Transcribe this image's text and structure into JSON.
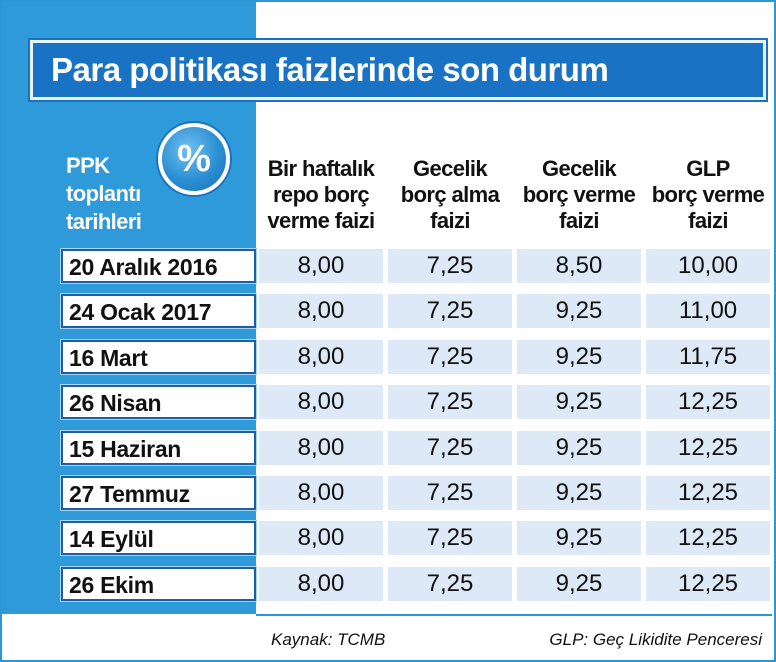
{
  "title": "Para politikası faizlerinde son durum",
  "badge": "%",
  "row_header_label": [
    "PPK",
    "toplantı",
    "tarihleri"
  ],
  "chart_data": {
    "type": "table",
    "title": "Para politikası faizlerinde son durum",
    "columns": [
      [
        "Bir haftalık",
        "repo borç",
        "verme faizi"
      ],
      [
        "Gecelik",
        "borç alma",
        "faizi"
      ],
      [
        "Gecelik",
        "borç verme",
        "faizi"
      ],
      [
        "GLP",
        "borç verme",
        "faizi"
      ]
    ],
    "rows": [
      {
        "date": "20 Aralık 2016",
        "values": [
          "8,00",
          "7,25",
          "8,50",
          "10,00"
        ]
      },
      {
        "date": "24 Ocak 2017",
        "values": [
          "8,00",
          "7,25",
          "9,25",
          "11,00"
        ]
      },
      {
        "date": "16 Mart",
        "values": [
          "8,00",
          "7,25",
          "9,25",
          "11,75"
        ]
      },
      {
        "date": "26 Nisan",
        "values": [
          "8,00",
          "7,25",
          "9,25",
          "12,25"
        ]
      },
      {
        "date": "15 Haziran",
        "values": [
          "8,00",
          "7,25",
          "9,25",
          "12,25"
        ]
      },
      {
        "date": "27 Temmuz",
        "values": [
          "8,00",
          "7,25",
          "9,25",
          "12,25"
        ]
      },
      {
        "date": "14 Eylül",
        "values": [
          "8,00",
          "7,25",
          "9,25",
          "12,25"
        ]
      },
      {
        "date": "26 Ekim",
        "values": [
          "8,00",
          "7,25",
          "9,25",
          "12,25"
        ]
      }
    ]
  },
  "footer": {
    "source": "Kaynak: TCMB",
    "note": "GLP: Geç Likidite Penceresi"
  },
  "colors": {
    "panel_blue": "#2f9ad9",
    "title_blue": "#1a72c4",
    "cell_bg": "#dde9f7"
  }
}
